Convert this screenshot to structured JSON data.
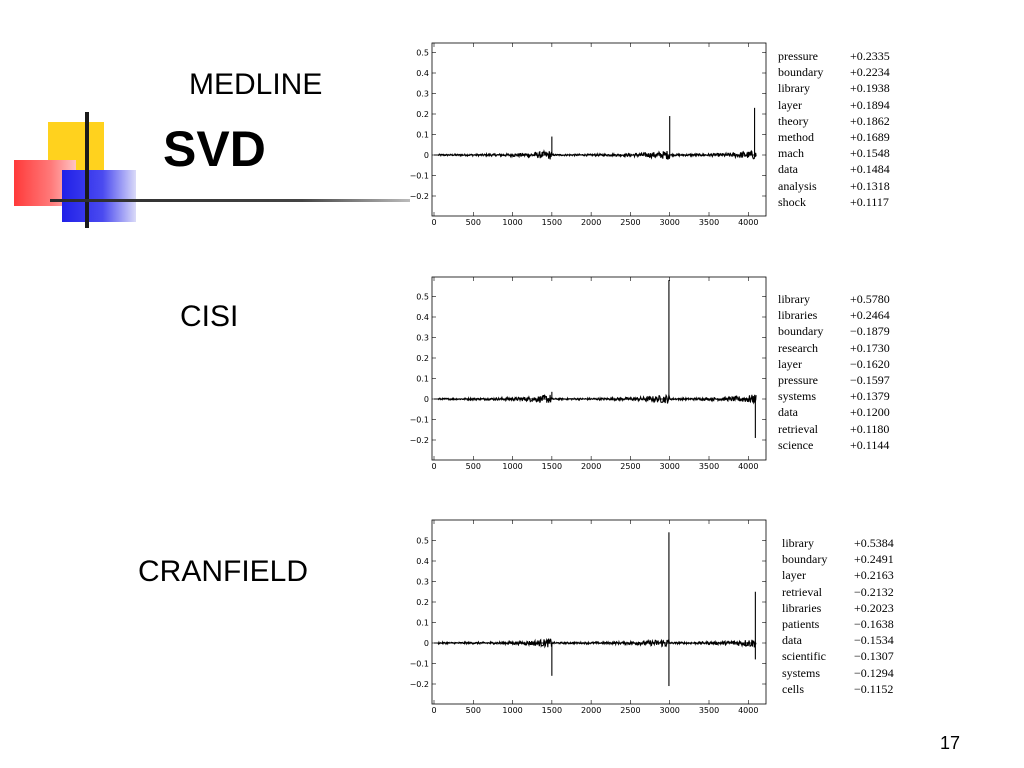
{
  "slide": {
    "title": "SVD",
    "page_number": "17"
  },
  "chart_data": [
    {
      "type": "line",
      "dataset": "MEDLINE",
      "x_ticks": [
        "0",
        "500",
        "1000",
        "1500",
        "2000",
        "2500",
        "3000",
        "3500",
        "4000"
      ],
      "y_ticks": [
        "0.5",
        "0.4",
        "0.3",
        "0.2",
        "0.1",
        "0",
        "−0.1",
        "−0.2"
      ],
      "xlim": [
        0,
        4200
      ],
      "ylim": [
        -0.3,
        0.55
      ],
      "baseline": 0,
      "peaks": [
        {
          "x": 1500,
          "y": 0.09,
          "direction": "up"
        },
        {
          "x": 3000,
          "y": 0.19,
          "direction": "up"
        },
        {
          "x": 4080,
          "y": 0.23,
          "direction": "up"
        }
      ],
      "terms": [
        {
          "term": "pressure",
          "weight": "+0.2335"
        },
        {
          "term": "boundary",
          "weight": "+0.2234"
        },
        {
          "term": "library",
          "weight": "+0.1938"
        },
        {
          "term": "layer",
          "weight": "+0.1894"
        },
        {
          "term": "theory",
          "weight": "+0.1862"
        },
        {
          "term": "method",
          "weight": "+0.1689"
        },
        {
          "term": "mach",
          "weight": "+0.1548"
        },
        {
          "term": "data",
          "weight": "+0.1484"
        },
        {
          "term": "analysis",
          "weight": "+0.1318"
        },
        {
          "term": "shock",
          "weight": "+0.1117"
        }
      ]
    },
    {
      "type": "line",
      "dataset": "CISI",
      "x_ticks": [
        "0",
        "500",
        "1000",
        "1500",
        "2000",
        "2500",
        "3000",
        "3500",
        "4000"
      ],
      "y_ticks": [
        "0.5",
        "0.4",
        "0.3",
        "0.2",
        "0.1",
        "0",
        "−0.1",
        "−0.2"
      ],
      "xlim": [
        0,
        4200
      ],
      "ylim": [
        -0.3,
        0.6
      ],
      "baseline": 0,
      "peaks": [
        {
          "x": 1500,
          "y": 0.035,
          "direction": "up"
        },
        {
          "x": 2990,
          "y": 0.58,
          "direction": "up"
        },
        {
          "x": 4090,
          "y": -0.19,
          "direction": "down"
        }
      ],
      "terms": [
        {
          "term": "library",
          "weight": "+0.5780"
        },
        {
          "term": "libraries",
          "weight": "+0.2464"
        },
        {
          "term": "boundary",
          "weight": "−0.1879"
        },
        {
          "term": "research",
          "weight": "+0.1730"
        },
        {
          "term": "layer",
          "weight": "−0.1620"
        },
        {
          "term": "pressure",
          "weight": "−0.1597"
        },
        {
          "term": "systems",
          "weight": "+0.1379"
        },
        {
          "term": "data",
          "weight": "+0.1200"
        },
        {
          "term": "retrieval",
          "weight": "+0.1180"
        },
        {
          "term": "science",
          "weight": "+0.1144"
        }
      ]
    },
    {
      "type": "line",
      "dataset": "CRANFIELD",
      "x_ticks": [
        "0",
        "500",
        "1000",
        "1500",
        "2000",
        "2500",
        "3000",
        "3500",
        "4000"
      ],
      "y_ticks": [
        "0.5",
        "0.4",
        "0.3",
        "0.2",
        "0.1",
        "0",
        "−0.1",
        "−0.2"
      ],
      "xlim": [
        0,
        4200
      ],
      "ylim": [
        -0.3,
        0.6
      ],
      "baseline": 0,
      "peaks": [
        {
          "x": 1500,
          "y": -0.16,
          "direction": "down"
        },
        {
          "x": 2990,
          "y": 0.54,
          "direction": "up"
        },
        {
          "x": 2990,
          "y": -0.21,
          "direction": "down"
        },
        {
          "x": 4090,
          "y": 0.25,
          "direction": "up"
        },
        {
          "x": 4090,
          "y": -0.08,
          "direction": "down"
        }
      ],
      "terms": [
        {
          "term": "library",
          "weight": "+0.5384"
        },
        {
          "term": "boundary",
          "weight": "+0.2491"
        },
        {
          "term": "layer",
          "weight": "+0.2163"
        },
        {
          "term": "retrieval",
          "weight": "−0.2132"
        },
        {
          "term": "libraries",
          "weight": "+0.2023"
        },
        {
          "term": "patients",
          "weight": "−0.1638"
        },
        {
          "term": "data",
          "weight": "−0.1534"
        },
        {
          "term": "scientific",
          "weight": "−0.1307"
        },
        {
          "term": "systems",
          "weight": "−0.1294"
        },
        {
          "term": "cells",
          "weight": "−0.1152"
        }
      ]
    }
  ]
}
